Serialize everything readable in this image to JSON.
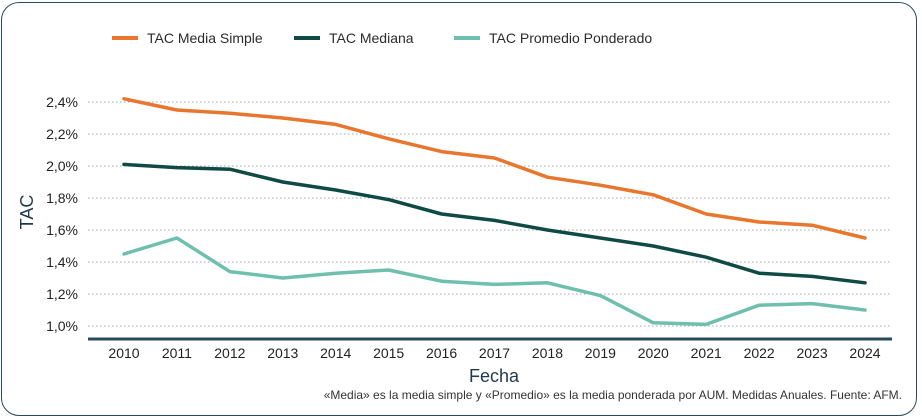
{
  "chart_data": {
    "type": "line",
    "xlabel": "Fecha",
    "ylabel": "TAC",
    "ylim": [
      1.0,
      2.5
    ],
    "y_ticks": [
      "1,0%",
      "1,2%",
      "1,4%",
      "1,6%",
      "1,8%",
      "2,0%",
      "2,2%",
      "2,4%"
    ],
    "y_tick_values": [
      1.0,
      1.2,
      1.4,
      1.6,
      1.8,
      2.0,
      2.2,
      2.4
    ],
    "grid": "horizontal dotted",
    "legend": "top-left",
    "x": [
      "2010",
      "2011",
      "2012",
      "2013",
      "2014",
      "2015",
      "2016",
      "2017",
      "2018",
      "2019",
      "2020",
      "2021",
      "2022",
      "2023",
      "2024"
    ],
    "series": [
      {
        "name": "TAC Media Simple",
        "color": "#e8762d",
        "values": [
          2.42,
          2.35,
          2.33,
          2.3,
          2.26,
          2.17,
          2.09,
          2.05,
          1.93,
          1.88,
          1.82,
          1.7,
          1.65,
          1.63,
          1.55
        ]
      },
      {
        "name": "TAC Mediana",
        "color": "#0f4a45",
        "values": [
          2.01,
          1.99,
          1.98,
          1.9,
          1.85,
          1.79,
          1.7,
          1.66,
          1.6,
          1.55,
          1.5,
          1.43,
          1.33,
          1.31,
          1.27
        ]
      },
      {
        "name": "TAC Promedio Ponderado",
        "color": "#6fbfae",
        "values": [
          1.45,
          1.55,
          1.34,
          1.3,
          1.33,
          1.35,
          1.28,
          1.26,
          1.27,
          1.19,
          1.02,
          1.01,
          1.13,
          1.14,
          1.1
        ]
      }
    ]
  },
  "footnote": "«Media» es la media simple y «Promedio» es la media ponderada por AUM. Medidas Anuales. Fuente: AFM.",
  "colors": {
    "axis": "#2a4a5e",
    "grid": "#9aa7b0"
  }
}
